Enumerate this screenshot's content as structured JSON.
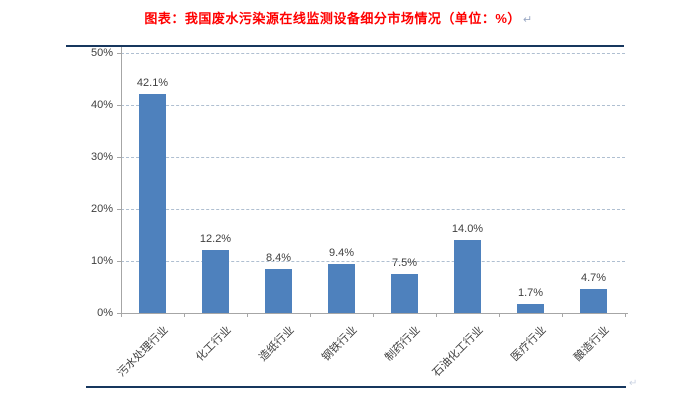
{
  "document": {
    "title": "图表：我国废水污染源在线监测设备细分市场情况（单位：%）",
    "paragraph_mark": "↵"
  },
  "chart_data": {
    "type": "bar",
    "title": "图表：我国废水污染源在线监测设备细分市场情况（单位：%）",
    "categories": [
      "污水处理行业",
      "化工行业",
      "造纸行业",
      "钢铁行业",
      "制药行业",
      "石油化工行业",
      "医疗行业",
      "酿造行业"
    ],
    "values": [
      42.1,
      12.2,
      8.4,
      9.4,
      7.5,
      14.0,
      1.7,
      4.7
    ],
    "value_labels": [
      "42.1%",
      "12.2%",
      "8.4%",
      "9.4%",
      "7.5%",
      "14.0%",
      "1.7%",
      "4.7%"
    ],
    "y_ticks": [
      0,
      10,
      20,
      30,
      40,
      50
    ],
    "y_tick_labels": [
      "0%",
      "10%",
      "20%",
      "30%",
      "40%",
      "50%"
    ],
    "ylim": [
      0,
      50
    ],
    "xlabel": "",
    "ylabel": "",
    "grid": "horizontal-dashed",
    "legend": "none"
  },
  "colors": {
    "title": "#FF0000",
    "bar": "#4E81BD",
    "border_rule": "#17375E",
    "gridline": "#AFBFD1",
    "axis": "#A6A6A6",
    "label": "#3F3F3F"
  }
}
